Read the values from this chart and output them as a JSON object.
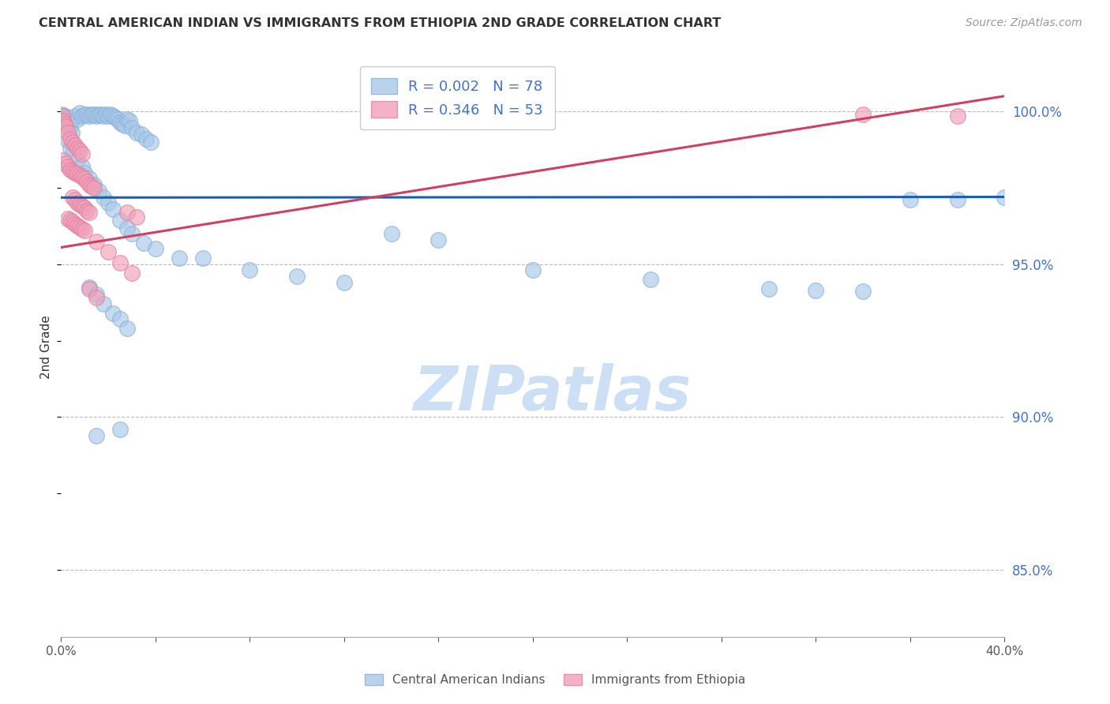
{
  "title": "CENTRAL AMERICAN INDIAN VS IMMIGRANTS FROM ETHIOPIA 2ND GRADE CORRELATION CHART",
  "source": "Source: ZipAtlas.com",
  "ylabel": "2nd Grade",
  "ytick_labels": [
    "100.0%",
    "95.0%",
    "90.0%",
    "85.0%"
  ],
  "ytick_values": [
    1.0,
    0.95,
    0.9,
    0.85
  ],
  "xmin": 0.0,
  "xmax": 0.4,
  "ymin": 0.828,
  "ymax": 1.018,
  "watermark": "ZIPatlas",
  "blue_line": {
    "x0": 0.0,
    "y0": 0.9718,
    "x1": 0.4,
    "y1": 0.972
  },
  "pink_line": {
    "x0": 0.0,
    "y0": 0.9555,
    "x1": 0.4,
    "y1": 1.005
  },
  "blue_dots": [
    [
      0.0005,
      0.999
    ],
    [
      0.001,
      0.997
    ],
    [
      0.0015,
      0.9985
    ],
    [
      0.002,
      0.9975
    ],
    [
      0.0025,
      0.9965
    ],
    [
      0.003,
      0.998
    ],
    [
      0.0035,
      0.9955
    ],
    [
      0.004,
      0.9945
    ],
    [
      0.0045,
      0.993
    ],
    [
      0.005,
      0.9975
    ],
    [
      0.006,
      0.9985
    ],
    [
      0.007,
      0.9975
    ],
    [
      0.008,
      0.9995
    ],
    [
      0.009,
      0.9985
    ],
    [
      0.01,
      0.999
    ],
    [
      0.011,
      0.999
    ],
    [
      0.012,
      0.9985
    ],
    [
      0.013,
      0.999
    ],
    [
      0.014,
      0.999
    ],
    [
      0.015,
      0.9985
    ],
    [
      0.016,
      0.999
    ],
    [
      0.017,
      0.999
    ],
    [
      0.018,
      0.9985
    ],
    [
      0.019,
      0.999
    ],
    [
      0.02,
      0.9985
    ],
    [
      0.021,
      0.999
    ],
    [
      0.022,
      0.9985
    ],
    [
      0.023,
      0.998
    ],
    [
      0.024,
      0.9975
    ],
    [
      0.025,
      0.9965
    ],
    [
      0.026,
      0.996
    ],
    [
      0.027,
      0.9955
    ],
    [
      0.028,
      0.9975
    ],
    [
      0.029,
      0.997
    ],
    [
      0.03,
      0.9945
    ],
    [
      0.032,
      0.993
    ],
    [
      0.034,
      0.9925
    ],
    [
      0.036,
      0.991
    ],
    [
      0.038,
      0.99
    ],
    [
      0.003,
      0.9905
    ],
    [
      0.004,
      0.988
    ],
    [
      0.005,
      0.986
    ],
    [
      0.007,
      0.984
    ],
    [
      0.009,
      0.982
    ],
    [
      0.01,
      0.98
    ],
    [
      0.012,
      0.978
    ],
    [
      0.014,
      0.976
    ],
    [
      0.016,
      0.974
    ],
    [
      0.018,
      0.972
    ],
    [
      0.02,
      0.97
    ],
    [
      0.022,
      0.968
    ],
    [
      0.025,
      0.9645
    ],
    [
      0.028,
      0.9618
    ],
    [
      0.03,
      0.96
    ],
    [
      0.035,
      0.957
    ],
    [
      0.04,
      0.955
    ],
    [
      0.05,
      0.952
    ],
    [
      0.012,
      0.9425
    ],
    [
      0.015,
      0.94
    ],
    [
      0.018,
      0.937
    ],
    [
      0.022,
      0.934
    ],
    [
      0.025,
      0.932
    ],
    [
      0.028,
      0.929
    ],
    [
      0.06,
      0.952
    ],
    [
      0.08,
      0.948
    ],
    [
      0.1,
      0.946
    ],
    [
      0.12,
      0.944
    ],
    [
      0.14,
      0.96
    ],
    [
      0.16,
      0.958
    ],
    [
      0.2,
      0.948
    ],
    [
      0.25,
      0.945
    ],
    [
      0.3,
      0.942
    ],
    [
      0.32,
      0.9415
    ],
    [
      0.34,
      0.9412
    ],
    [
      0.36,
      0.971
    ],
    [
      0.38,
      0.971
    ],
    [
      0.4,
      0.972
    ],
    [
      0.015,
      0.894
    ],
    [
      0.025,
      0.896
    ]
  ],
  "pink_dots": [
    [
      0.0005,
      0.9985
    ],
    [
      0.001,
      0.997
    ],
    [
      0.0015,
      0.996
    ],
    [
      0.002,
      0.995
    ],
    [
      0.003,
      0.993
    ],
    [
      0.004,
      0.991
    ],
    [
      0.005,
      0.99
    ],
    [
      0.006,
      0.989
    ],
    [
      0.007,
      0.988
    ],
    [
      0.008,
      0.987
    ],
    [
      0.009,
      0.986
    ],
    [
      0.001,
      0.984
    ],
    [
      0.002,
      0.983
    ],
    [
      0.003,
      0.982
    ],
    [
      0.004,
      0.981
    ],
    [
      0.005,
      0.9805
    ],
    [
      0.006,
      0.98
    ],
    [
      0.007,
      0.9795
    ],
    [
      0.008,
      0.979
    ],
    [
      0.009,
      0.9785
    ],
    [
      0.01,
      0.978
    ],
    [
      0.011,
      0.977
    ],
    [
      0.012,
      0.976
    ],
    [
      0.013,
      0.9755
    ],
    [
      0.014,
      0.975
    ],
    [
      0.005,
      0.972
    ],
    [
      0.006,
      0.971
    ],
    [
      0.007,
      0.97
    ],
    [
      0.008,
      0.9695
    ],
    [
      0.009,
      0.969
    ],
    [
      0.01,
      0.9685
    ],
    [
      0.011,
      0.9675
    ],
    [
      0.012,
      0.967
    ],
    [
      0.003,
      0.965
    ],
    [
      0.004,
      0.9645
    ],
    [
      0.005,
      0.964
    ],
    [
      0.006,
      0.963
    ],
    [
      0.007,
      0.9625
    ],
    [
      0.008,
      0.962
    ],
    [
      0.009,
      0.9615
    ],
    [
      0.01,
      0.961
    ],
    [
      0.015,
      0.9575
    ],
    [
      0.02,
      0.954
    ],
    [
      0.025,
      0.9505
    ],
    [
      0.03,
      0.947
    ],
    [
      0.012,
      0.942
    ],
    [
      0.015,
      0.939
    ],
    [
      0.34,
      0.999
    ],
    [
      0.38,
      0.9985
    ],
    [
      0.028,
      0.967
    ],
    [
      0.032,
      0.9655
    ]
  ],
  "background_color": "#ffffff",
  "grid_color": "#bbbbbb",
  "title_color": "#333333",
  "blue_color": "#a8c8e8",
  "pink_color": "#f0a0b8",
  "blue_edge_color": "#8ab0d8",
  "pink_edge_color": "#e080a0",
  "blue_line_color": "#1a5fa8",
  "pink_line_color": "#d04060",
  "right_axis_color": "#4472c4",
  "watermark_color": "#ccdff5",
  "legend_blue_label": "R = 0.002   N = 78",
  "legend_pink_label": "R = 0.346   N = 53",
  "bottom_label_blue": "Central American Indians",
  "bottom_label_pink": "Immigrants from Ethiopia"
}
